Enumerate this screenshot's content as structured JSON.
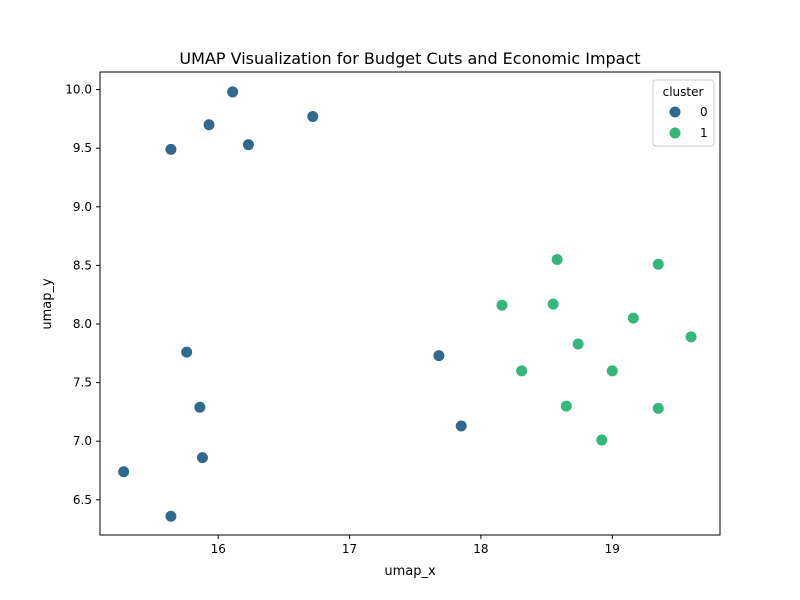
{
  "chart_data": {
    "type": "scatter",
    "title": "UMAP Visualization for Budget Cuts and Economic Impact",
    "xlabel": "umap_x",
    "ylabel": "umap_y",
    "xlim": [
      15.1,
      19.82
    ],
    "ylim": [
      6.2,
      10.15
    ],
    "xticks": [
      16,
      17,
      18,
      19
    ],
    "yticks": [
      6.5,
      7.0,
      7.5,
      8.0,
      8.5,
      9.0,
      9.5,
      10.0
    ],
    "xtick_labels": [
      "16",
      "17",
      "18",
      "19"
    ],
    "ytick_labels": [
      "6.5",
      "7.0",
      "7.5",
      "8.0",
      "8.5",
      "9.0",
      "9.5",
      "10.0"
    ],
    "grid": false,
    "legend": {
      "title": "cluster",
      "placement": "top-right"
    },
    "series": [
      {
        "name": "0",
        "color": "#31688e",
        "points": [
          [
            16.11,
            9.98
          ],
          [
            15.93,
            9.7
          ],
          [
            16.72,
            9.77
          ],
          [
            16.23,
            9.53
          ],
          [
            15.64,
            9.49
          ],
          [
            15.76,
            7.76
          ],
          [
            17.68,
            7.73
          ],
          [
            15.86,
            7.29
          ],
          [
            17.85,
            7.13
          ],
          [
            15.88,
            6.86
          ],
          [
            15.28,
            6.74
          ],
          [
            15.64,
            6.36
          ]
        ]
      },
      {
        "name": "1",
        "color": "#35b779",
        "points": [
          [
            18.58,
            8.55
          ],
          [
            19.35,
            8.51
          ],
          [
            18.16,
            8.16
          ],
          [
            18.55,
            8.17
          ],
          [
            19.16,
            8.05
          ],
          [
            19.6,
            7.89
          ],
          [
            18.74,
            7.83
          ],
          [
            18.31,
            7.6
          ],
          [
            19.0,
            7.6
          ],
          [
            18.65,
            7.3
          ],
          [
            19.35,
            7.28
          ],
          [
            18.92,
            7.01
          ]
        ]
      }
    ]
  }
}
